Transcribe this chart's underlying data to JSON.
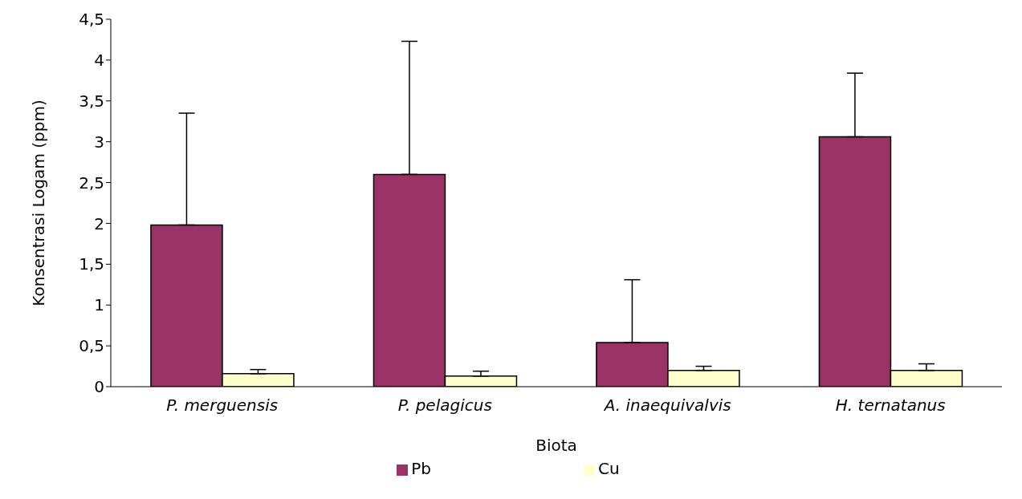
{
  "chart_data": {
    "type": "bar",
    "xlabel": "Biota",
    "ylabel": "Konsentrasi Logam (ppm)",
    "categories": [
      "P. merguensis",
      "P. pelagicus",
      "A. inaequivalvis",
      "H. ternatanus"
    ],
    "series": [
      {
        "name": "Pb",
        "color": "#993366",
        "values": [
          1.98,
          2.6,
          0.54,
          3.06
        ],
        "errors": [
          [
            1.98,
            3.35
          ],
          [
            2.6,
            4.23
          ],
          [
            0.54,
            1.31
          ],
          [
            3.06,
            3.84
          ]
        ]
      },
      {
        "name": "Cu",
        "color": "#ffffcc",
        "values": [
          0.16,
          0.13,
          0.2,
          0.2
        ],
        "errors": [
          [
            0.16,
            0.21
          ],
          [
            0.13,
            0.19
          ],
          [
            0.2,
            0.25
          ],
          [
            0.2,
            0.28
          ]
        ]
      }
    ],
    "ylim": [
      0,
      4.5
    ],
    "yticks": [
      0,
      {
        "value": 0.5,
        "label": "0,5"
      },
      1,
      {
        "value": 1.5,
        "label": "1,5"
      },
      2,
      {
        "value": 2.5,
        "label": "2,5"
      },
      3,
      {
        "value": 3.5,
        "label": "3,5"
      },
      4,
      {
        "value": 4.5,
        "label": "4,5"
      }
    ],
    "grid": false,
    "legend": "bottom"
  }
}
